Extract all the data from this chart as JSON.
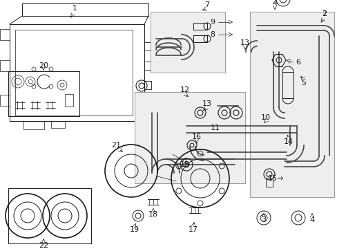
{
  "bg_color": "#ffffff",
  "dark": "#1a1a1a",
  "mid": "#444444",
  "gray_fill": "#eeeeee",
  "gray_border": "#999999"
}
